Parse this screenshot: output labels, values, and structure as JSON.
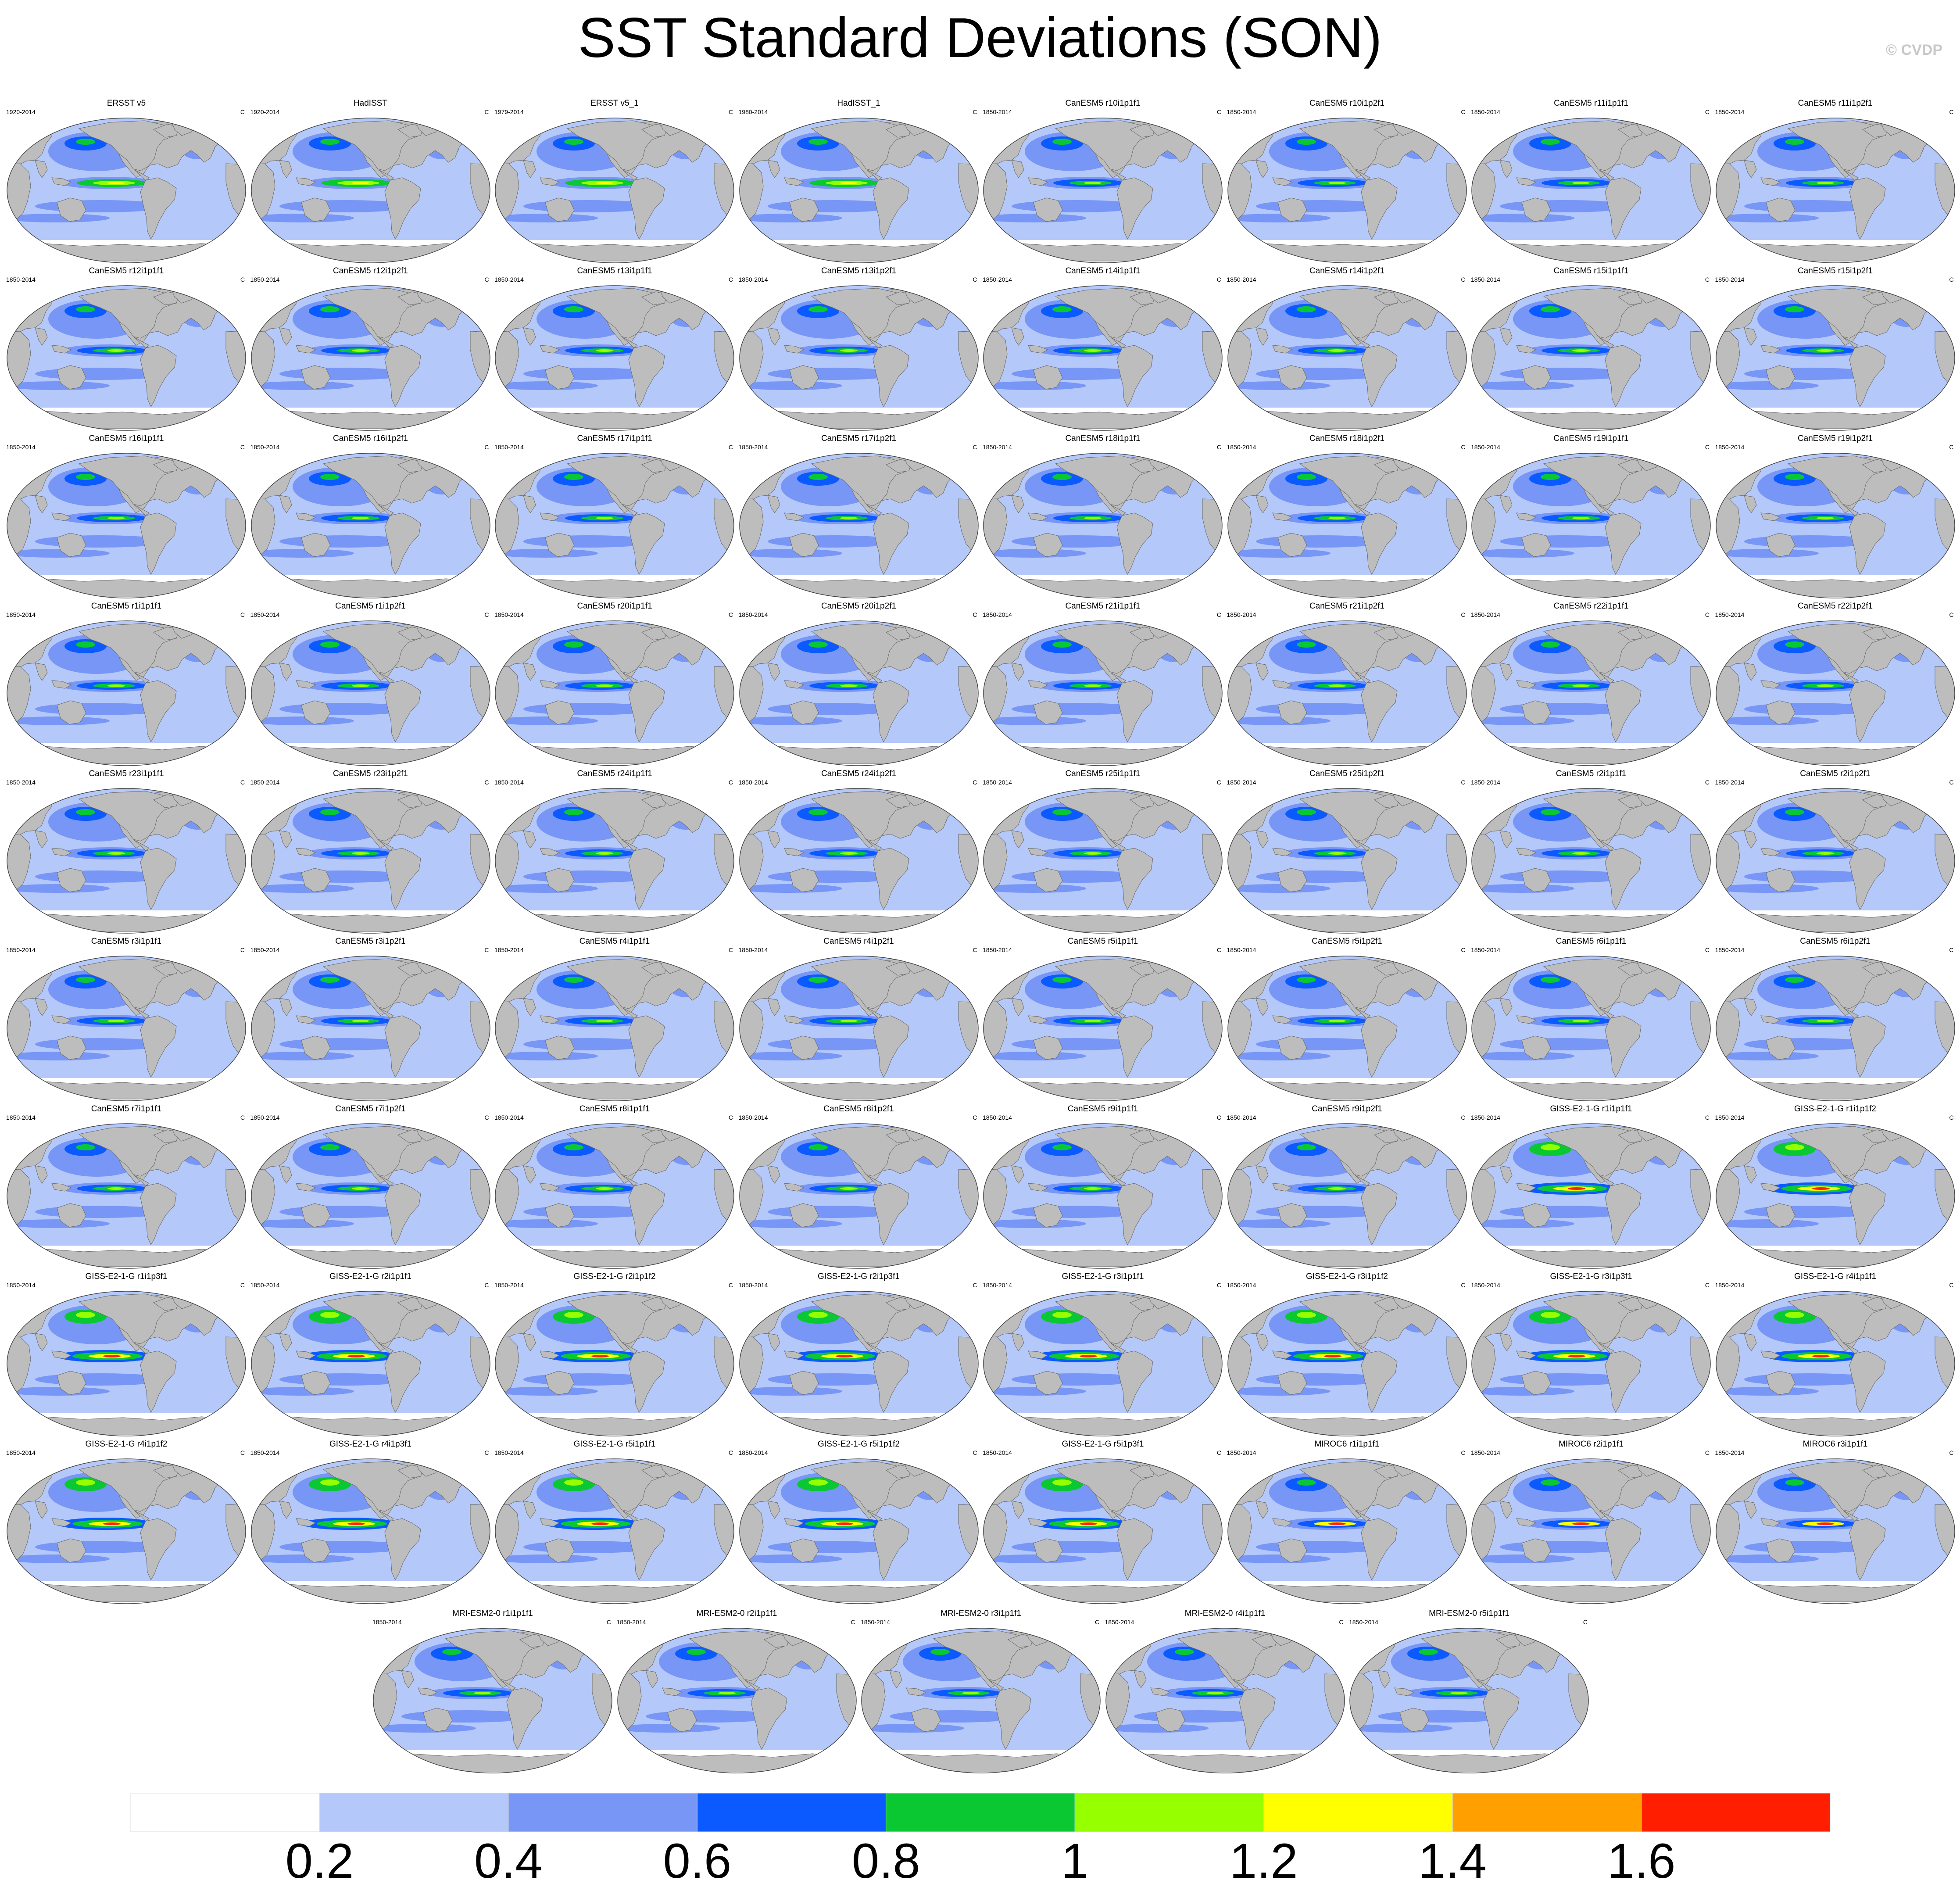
{
  "title": "SST Standard Deviations (SON)",
  "watermark": "© CVDP",
  "units": "C",
  "chart_data": {
    "type": "filled-contour-map-grid",
    "title": "SST Standard Deviations (SON)",
    "variable": "SST standard deviation",
    "season": "SON",
    "units": "C",
    "projection": "Robinson",
    "colorbar": {
      "levels": [
        0.2,
        0.4,
        0.6,
        0.8,
        1,
        1.2,
        1.4,
        1.6
      ],
      "tick_labels": [
        "0.2",
        "0.4",
        "0.6",
        "0.8",
        "1",
        "1.2",
        "1.4",
        "1.6"
      ],
      "colors": [
        "#ffffff",
        "#b4c8fa",
        "#7896f5",
        "#0a5aff",
        "#0ac832",
        "#96ff00",
        "#ffff00",
        "#ffa000",
        "#ff1e00"
      ]
    },
    "panels": [
      {
        "name": "ERSST v5",
        "years": "1920-2014"
      },
      {
        "name": "HadISST",
        "years": "1920-2014"
      },
      {
        "name": "ERSST v5_1",
        "years": "1979-2014"
      },
      {
        "name": "HadISST_1",
        "years": "1980-2014"
      },
      {
        "name": "CanESM5 r10i1p1f1",
        "years": "1850-2014"
      },
      {
        "name": "CanESM5 r10i1p2f1",
        "years": "1850-2014"
      },
      {
        "name": "CanESM5 r11i1p1f1",
        "years": "1850-2014"
      },
      {
        "name": "CanESM5 r11i1p2f1",
        "years": "1850-2014"
      },
      {
        "name": "CanESM5 r12i1p1f1",
        "years": "1850-2014"
      },
      {
        "name": "CanESM5 r12i1p2f1",
        "years": "1850-2014"
      },
      {
        "name": "CanESM5 r13i1p1f1",
        "years": "1850-2014"
      },
      {
        "name": "CanESM5 r13i1p2f1",
        "years": "1850-2014"
      },
      {
        "name": "CanESM5 r14i1p1f1",
        "years": "1850-2014"
      },
      {
        "name": "CanESM5 r14i1p2f1",
        "years": "1850-2014"
      },
      {
        "name": "CanESM5 r15i1p1f1",
        "years": "1850-2014"
      },
      {
        "name": "CanESM5 r15i1p2f1",
        "years": "1850-2014"
      },
      {
        "name": "CanESM5 r16i1p1f1",
        "years": "1850-2014"
      },
      {
        "name": "CanESM5 r16i1p2f1",
        "years": "1850-2014"
      },
      {
        "name": "CanESM5 r17i1p1f1",
        "years": "1850-2014"
      },
      {
        "name": "CanESM5 r17i1p2f1",
        "years": "1850-2014"
      },
      {
        "name": "CanESM5 r18i1p1f1",
        "years": "1850-2014"
      },
      {
        "name": "CanESM5 r18i1p2f1",
        "years": "1850-2014"
      },
      {
        "name": "CanESM5 r19i1p1f1",
        "years": "1850-2014"
      },
      {
        "name": "CanESM5 r19i1p2f1",
        "years": "1850-2014"
      },
      {
        "name": "CanESM5 r1i1p1f1",
        "years": "1850-2014"
      },
      {
        "name": "CanESM5 r1i1p2f1",
        "years": "1850-2014"
      },
      {
        "name": "CanESM5 r20i1p1f1",
        "years": "1850-2014"
      },
      {
        "name": "CanESM5 r20i1p2f1",
        "years": "1850-2014"
      },
      {
        "name": "CanESM5 r21i1p1f1",
        "years": "1850-2014"
      },
      {
        "name": "CanESM5 r21i1p2f1",
        "years": "1850-2014"
      },
      {
        "name": "CanESM5 r22i1p1f1",
        "years": "1850-2014"
      },
      {
        "name": "CanESM5 r22i1p2f1",
        "years": "1850-2014"
      },
      {
        "name": "CanESM5 r23i1p1f1",
        "years": "1850-2014"
      },
      {
        "name": "CanESM5 r23i1p2f1",
        "years": "1850-2014"
      },
      {
        "name": "CanESM5 r24i1p1f1",
        "years": "1850-2014"
      },
      {
        "name": "CanESM5 r24i1p2f1",
        "years": "1850-2014"
      },
      {
        "name": "CanESM5 r25i1p1f1",
        "years": "1850-2014"
      },
      {
        "name": "CanESM5 r25i1p2f1",
        "years": "1850-2014"
      },
      {
        "name": "CanESM5 r2i1p1f1",
        "years": "1850-2014"
      },
      {
        "name": "CanESM5 r2i1p2f1",
        "years": "1850-2014"
      },
      {
        "name": "CanESM5 r3i1p1f1",
        "years": "1850-2014"
      },
      {
        "name": "CanESM5 r3i1p2f1",
        "years": "1850-2014"
      },
      {
        "name": "CanESM5 r4i1p1f1",
        "years": "1850-2014"
      },
      {
        "name": "CanESM5 r4i1p2f1",
        "years": "1850-2014"
      },
      {
        "name": "CanESM5 r5i1p1f1",
        "years": "1850-2014"
      },
      {
        "name": "CanESM5 r5i1p2f1",
        "years": "1850-2014"
      },
      {
        "name": "CanESM5 r6i1p1f1",
        "years": "1850-2014"
      },
      {
        "name": "CanESM5 r6i1p2f1",
        "years": "1850-2014"
      },
      {
        "name": "CanESM5 r7i1p1f1",
        "years": "1850-2014"
      },
      {
        "name": "CanESM5 r7i1p2f1",
        "years": "1850-2014"
      },
      {
        "name": "CanESM5 r8i1p1f1",
        "years": "1850-2014"
      },
      {
        "name": "CanESM5 r8i1p2f1",
        "years": "1850-2014"
      },
      {
        "name": "CanESM5 r9i1p1f1",
        "years": "1850-2014"
      },
      {
        "name": "CanESM5 r9i1p2f1",
        "years": "1850-2014"
      },
      {
        "name": "GISS-E2-1-G r1i1p1f1",
        "years": "1850-2014"
      },
      {
        "name": "GISS-E2-1-G r1i1p1f2",
        "years": "1850-2014"
      },
      {
        "name": "GISS-E2-1-G r1i1p3f1",
        "years": "1850-2014"
      },
      {
        "name": "GISS-E2-1-G r2i1p1f1",
        "years": "1850-2014"
      },
      {
        "name": "GISS-E2-1-G r2i1p1f2",
        "years": "1850-2014"
      },
      {
        "name": "GISS-E2-1-G r2i1p3f1",
        "years": "1850-2014"
      },
      {
        "name": "GISS-E2-1-G r3i1p1f1",
        "years": "1850-2014"
      },
      {
        "name": "GISS-E2-1-G r3i1p1f2",
        "years": "1850-2014"
      },
      {
        "name": "GISS-E2-1-G r3i1p3f1",
        "years": "1850-2014"
      },
      {
        "name": "GISS-E2-1-G r4i1p1f1",
        "years": "1850-2014"
      },
      {
        "name": "GISS-E2-1-G r4i1p1f2",
        "years": "1850-2014"
      },
      {
        "name": "GISS-E2-1-G r4i1p3f1",
        "years": "1850-2014"
      },
      {
        "name": "GISS-E2-1-G r5i1p1f1",
        "years": "1850-2014"
      },
      {
        "name": "GISS-E2-1-G r5i1p1f2",
        "years": "1850-2014"
      },
      {
        "name": "GISS-E2-1-G r5i1p3f1",
        "years": "1850-2014"
      },
      {
        "name": "MIROC6 r1i1p1f1",
        "years": "1850-2014"
      },
      {
        "name": "MIROC6 r2i1p1f1",
        "years": "1850-2014"
      },
      {
        "name": "MIROC6 r3i1p1f1",
        "years": "1850-2014"
      },
      {
        "name": "MRI-ESM2-0 r1i1p1f1",
        "years": "1850-2014"
      },
      {
        "name": "MRI-ESM2-0 r2i1p1f1",
        "years": "1850-2014"
      },
      {
        "name": "MRI-ESM2-0 r3i1p1f1",
        "years": "1850-2014"
      },
      {
        "name": "MRI-ESM2-0 r4i1p1f1",
        "years": "1850-2014"
      },
      {
        "name": "MRI-ESM2-0 r5i1p1f1",
        "years": "1850-2014"
      }
    ]
  }
}
